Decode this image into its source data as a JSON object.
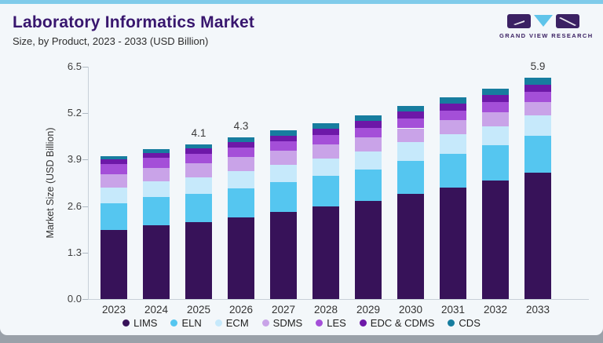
{
  "page": {
    "title": "Laboratory Informatics Market",
    "subtitle": "Size, by Product, 2023 - 2033 (USD Billion)",
    "brand": "GRAND VIEW RESEARCH"
  },
  "colors": {
    "top_accent": "#7fcbea",
    "card_background": "#f3f7fa",
    "title_text": "#38166e",
    "logo_purple": "#3b2163",
    "logo_triangle": "#5fc4ea",
    "axis_line": "#c7d0d8"
  },
  "chart_data": {
    "type": "bar",
    "stacked": true,
    "title": "Laboratory Informatics Market",
    "subtitle": "Size, by Product, 2023 - 2033 (USD Billion)",
    "xlabel": "",
    "ylabel": "Market Size (USD Billion)",
    "ylim": [
      0,
      6.5
    ],
    "ytick_labels": [
      "0.0",
      "1.3",
      "2.6",
      "3.9",
      "5.2",
      "6.5"
    ],
    "grid": false,
    "legend_position": "bottom",
    "categories": [
      "2023",
      "2024",
      "2025",
      "2026",
      "2027",
      "2028",
      "2029",
      "2030",
      "2031",
      "2032",
      "2033"
    ],
    "series": [
      {
        "name": "LIMS",
        "color": "#371259",
        "values": [
          1.85,
          1.97,
          2.05,
          2.18,
          2.32,
          2.46,
          2.61,
          2.8,
          2.97,
          3.15,
          3.37
        ]
      },
      {
        "name": "ELN",
        "color": "#55c6f0",
        "values": [
          0.71,
          0.74,
          0.76,
          0.78,
          0.8,
          0.82,
          0.85,
          0.88,
          0.91,
          0.94,
          0.98
        ]
      },
      {
        "name": "ECM",
        "color": "#c6e9fb",
        "values": [
          0.41,
          0.43,
          0.44,
          0.45,
          0.46,
          0.47,
          0.48,
          0.5,
          0.51,
          0.52,
          0.54
        ]
      },
      {
        "name": "SDMS",
        "color": "#c9a3e8",
        "values": [
          0.36,
          0.36,
          0.36,
          0.37,
          0.37,
          0.37,
          0.37,
          0.37,
          0.37,
          0.37,
          0.37
        ]
      },
      {
        "name": "LES",
        "color": "#a44fd8",
        "values": [
          0.26,
          0.26,
          0.26,
          0.26,
          0.26,
          0.26,
          0.26,
          0.27,
          0.27,
          0.27,
          0.27
        ]
      },
      {
        "name": "EDC & CDMS",
        "color": "#6d18a8",
        "values": [
          0.13,
          0.14,
          0.14,
          0.15,
          0.15,
          0.16,
          0.17,
          0.17,
          0.18,
          0.18,
          0.19
        ]
      },
      {
        "name": "CDS",
        "color": "#177d9f",
        "values": [
          0.09,
          0.1,
          0.11,
          0.12,
          0.13,
          0.14,
          0.15,
          0.16,
          0.17,
          0.18,
          0.19
        ]
      }
    ],
    "totals": [
      3.8,
      4.0,
      4.1,
      4.3,
      4.5,
      4.7,
      4.9,
      5.2,
      5.4,
      5.6,
      5.9
    ],
    "bar_labels": [
      "",
      "",
      "4.1",
      "4.3",
      "",
      "",
      "",
      "",
      "",
      "",
      "5.9"
    ]
  }
}
